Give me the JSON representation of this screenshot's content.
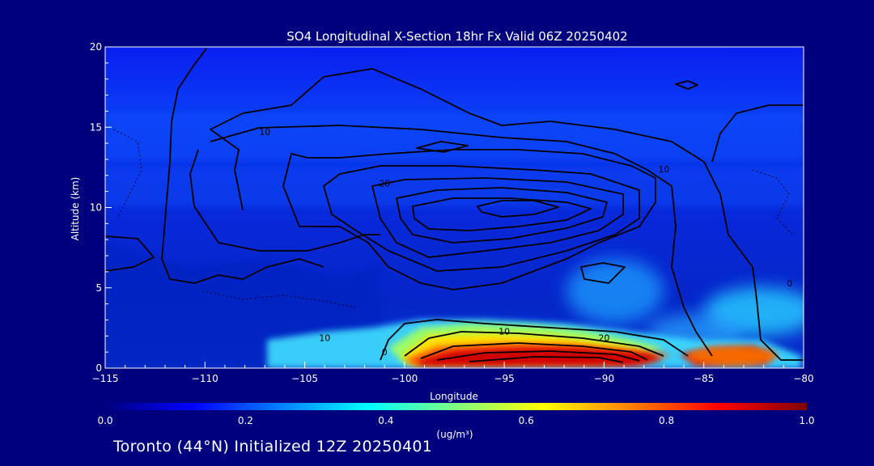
{
  "chart_data": {
    "type": "heatmap",
    "title": "SO4 Longitudinal X-Section 18hr  Fx Valid 06Z 20250402",
    "xlabel": "Longitude",
    "ylabel": "Altitude (km)",
    "xlim": [
      -115,
      -80
    ],
    "ylim": [
      0,
      20
    ],
    "x_ticks": [
      "-115",
      "-110",
      "-105",
      "-100",
      "-95",
      "-90",
      "-85",
      "-80"
    ],
    "y_ticks": [
      "0",
      "5",
      "10",
      "15",
      "20"
    ],
    "colorbar": {
      "range": [
        0.0,
        1.0
      ],
      "ticks": [
        "0.0",
        "0.2",
        "0.4",
        "0.6",
        "0.8",
        "1.0"
      ],
      "unit": "(ug/m³)",
      "colormap": "jet",
      "colors": [
        "#00007f",
        "#0000ff",
        "#007fff",
        "#00ffff",
        "#7fff7f",
        "#ffff00",
        "#ff7f00",
        "#ff0000",
        "#7f0000"
      ]
    },
    "concentration_field": [
      {
        "x": [
          -115,
          -80
        ],
        "y": [
          14,
          17
        ],
        "value": 0.14
      },
      {
        "x": [
          -115,
          -80
        ],
        "y": [
          10,
          14
        ],
        "value": 0.17
      },
      {
        "x": [
          -106,
          -101
        ],
        "y": [
          1,
          2
        ],
        "value": 0.42
      },
      {
        "x": [
          -101,
          -97
        ],
        "y": [
          1,
          3
        ],
        "value": 0.6
      },
      {
        "x": [
          -96,
          -88
        ],
        "y": [
          0.8,
          2.5
        ],
        "value": 0.7
      },
      {
        "x": [
          -99,
          -87
        ],
        "y": [
          0.5,
          1.5
        ],
        "value": 0.95
      },
      {
        "x": [
          -86,
          -82
        ],
        "y": [
          0.5,
          1.5
        ],
        "value": 0.92
      },
      {
        "x": [
          -90,
          -87
        ],
        "y": [
          4,
          6.5
        ],
        "value": 0.35
      },
      {
        "x": [
          -86,
          -80
        ],
        "y": [
          2.5,
          5
        ],
        "value": 0.35
      }
    ],
    "contour_labels": [
      {
        "text": "10",
        "x": -107,
        "y": 14.5
      },
      {
        "text": "20",
        "x": -101,
        "y": 11.3
      },
      {
        "text": "10",
        "x": -104,
        "y": 1.7
      },
      {
        "text": "0",
        "x": -101,
        "y": 0.8
      },
      {
        "text": "10",
        "x": -95,
        "y": 2.1
      },
      {
        "text": "20",
        "x": -90,
        "y": 1.7
      },
      {
        "text": "0",
        "x": -80.7,
        "y": 5.1
      },
      {
        "text": "10",
        "x": -87,
        "y": 12.2
      }
    ]
  },
  "footer": "Toronto (44°N) Initialized 12Z 20250401"
}
